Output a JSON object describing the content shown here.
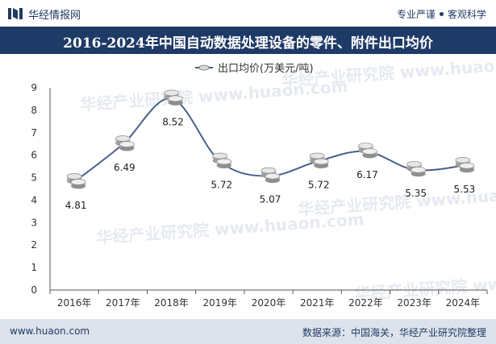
{
  "header": {
    "brand": "华经情报网",
    "tagline_left": "专业严谨",
    "tagline_right": "客观科学"
  },
  "chart_data": {
    "type": "line",
    "title": "2016-2024年中国自动数据处理设备的零件、附件出口均价",
    "categories": [
      "2016年",
      "2017年",
      "2018年",
      "2019年",
      "2020年",
      "2021年",
      "2022年",
      "2023年",
      "2024年"
    ],
    "series": [
      {
        "name": "出口均价(万美元/吨)",
        "values": [
          4.81,
          6.49,
          8.52,
          5.72,
          5.07,
          5.72,
          6.17,
          5.35,
          5.53
        ]
      }
    ],
    "data_labels": [
      "4.81",
      "6.49",
      "8.52",
      "5.72",
      "5.07",
      "5.72",
      "6.17",
      "5.35",
      "5.53"
    ],
    "ylim": [
      0,
      9
    ],
    "yticks": [
      "0",
      "1",
      "2",
      "3",
      "4",
      "5",
      "6",
      "7",
      "8",
      "9"
    ],
    "legend_position": "top-center",
    "line_color": "#4a5f8e",
    "marker": "coin-stack",
    "watermark": "华经产业研究院 www.huaon.com"
  },
  "footer": {
    "url": "www.huaon.com",
    "source": "数据来源：中国海关，华经产业研究院整理"
  }
}
